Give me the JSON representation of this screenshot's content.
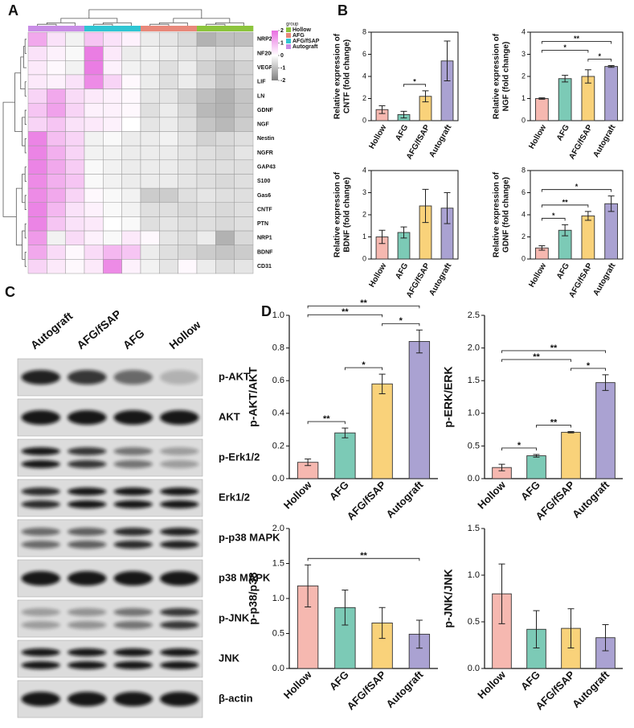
{
  "panels": [
    "A",
    "B",
    "C",
    "D"
  ],
  "chart_data": [
    {
      "type": "heatmap",
      "rows": [
        "NRP2",
        "NF200",
        "VEGF",
        "LIF",
        "LN",
        "GDNF",
        "NGF",
        "Nestin",
        "NGFR",
        "GAP43",
        "S100",
        "Gas6",
        "CNTF",
        "PTN",
        "NRP1",
        "BDNF",
        "CD31"
      ],
      "column_groups": [
        "Autograft",
        "Autograft",
        "Autograft",
        "AFG/fSAP",
        "AFG/fSAP",
        "AFG/fSAP",
        "AFG",
        "AFG",
        "AFG",
        "Hollow",
        "Hollow",
        "Hollow"
      ],
      "legend_title": "group",
      "groups": [
        {
          "name": "Hollow",
          "color": "#8cc43c"
        },
        {
          "name": "AFG",
          "color": "#e8887a"
        },
        {
          "name": "AFG/fSAP",
          "color": "#2ec5d3"
        },
        {
          "name": "Autograft",
          "color": "#c98de6"
        }
      ],
      "zlim": [
        -2,
        2
      ],
      "zticks": [
        2,
        1,
        0,
        -1,
        -2
      ],
      "zcolors": [
        "#7f7f7f",
        "#ffffff",
        "#e86ee0"
      ],
      "values": [
        [
          1.2,
          0.4,
          -0.2,
          0.8,
          0.4,
          0.2,
          -0.3,
          -0.4,
          -0.6,
          -1.2,
          -1.0,
          -1.0
        ],
        [
          0.4,
          0.2,
          -0.1,
          1.8,
          0.3,
          -0.3,
          -0.2,
          -0.3,
          -0.4,
          -0.5,
          -0.6,
          -0.5
        ],
        [
          0.3,
          0.1,
          -0.2,
          1.8,
          0.2,
          -0.2,
          -0.3,
          -0.5,
          -0.3,
          -0.7,
          -0.9,
          -0.7
        ],
        [
          0.3,
          0.2,
          0.4,
          1.6,
          0.6,
          0.1,
          -0.3,
          -0.5,
          -0.3,
          -0.6,
          -0.9,
          -0.7
        ],
        [
          0.6,
          1.2,
          0.5,
          0.3,
          0.2,
          0.1,
          -0.4,
          -0.4,
          -0.7,
          -1.0,
          -1.2,
          -0.9
        ],
        [
          0.8,
          1.3,
          0.6,
          0.2,
          0.2,
          0.1,
          -0.5,
          -0.3,
          -0.6,
          -1.1,
          -1.2,
          -0.9
        ],
        [
          0.6,
          0.8,
          0.4,
          0.3,
          0.2,
          0.0,
          -0.4,
          -0.3,
          -0.5,
          -0.9,
          -1.1,
          -0.8
        ],
        [
          1.7,
          0.9,
          0.6,
          -0.2,
          -0.1,
          -0.3,
          -0.3,
          -0.2,
          -0.4,
          -0.7,
          -0.6,
          -0.5
        ],
        [
          1.7,
          1.1,
          0.6,
          -0.2,
          -0.2,
          -0.3,
          -0.3,
          -0.3,
          -0.4,
          -0.5,
          -0.6,
          -0.4
        ],
        [
          1.7,
          1.2,
          0.7,
          -0.1,
          -0.2,
          -0.3,
          -0.3,
          -0.3,
          -0.4,
          -0.5,
          -0.5,
          -0.5
        ],
        [
          1.6,
          1.1,
          0.8,
          -0.1,
          -0.2,
          -0.3,
          -0.3,
          -0.3,
          -0.4,
          -0.5,
          -0.6,
          -0.5
        ],
        [
          1.6,
          1.2,
          0.6,
          0.1,
          -0.1,
          -0.2,
          -0.8,
          -0.8,
          -0.5,
          -0.4,
          -0.5,
          -0.5
        ],
        [
          1.7,
          1.0,
          0.4,
          0.2,
          -0.1,
          -0.2,
          -0.5,
          -0.5,
          -0.6,
          -0.5,
          -0.6,
          -0.5
        ],
        [
          1.7,
          0.8,
          0.4,
          0.3,
          0.0,
          -0.1,
          -0.5,
          -0.4,
          -0.5,
          -0.5,
          -0.6,
          -0.5
        ],
        [
          1.4,
          -0.2,
          0.5,
          0.2,
          -0.1,
          0.3,
          0.1,
          -0.4,
          -0.5,
          -0.3,
          -1.2,
          -0.6
        ],
        [
          1.2,
          0.5,
          0.1,
          0.5,
          1.0,
          0.8,
          -0.3,
          -0.5,
          -0.6,
          -0.8,
          -0.9,
          -0.8
        ],
        [
          0.6,
          0.3,
          0.1,
          0.3,
          1.6,
          0.2,
          -0.2,
          -0.4,
          0.1,
          -0.3,
          -0.5,
          -0.4
        ]
      ]
    },
    {
      "type": "bar",
      "ylabel": [
        "Relative expression of",
        "CNTF (fold change)"
      ],
      "categories": [
        "Hollow",
        "AFG",
        "AFG/fSAP",
        "Autograft"
      ],
      "colors": [
        "#f6b8b0",
        "#7ccab6",
        "#f9d27a",
        "#aaa2d2"
      ],
      "values": [
        1.0,
        0.55,
        2.2,
        5.4
      ],
      "errors": [
        0.35,
        0.3,
        0.5,
        1.8
      ],
      "ylim": [
        0,
        8
      ],
      "yticks": [
        0,
        2,
        4,
        6,
        8
      ],
      "significance": [
        {
          "pair": [
            "AFG",
            "AFG/fSAP"
          ],
          "label": "*"
        }
      ]
    },
    {
      "type": "bar",
      "ylabel": [
        "Relative expression of",
        "NGF (fold change)"
      ],
      "categories": [
        "Hollow",
        "AFG",
        "AFG/fSAP",
        "Autograft"
      ],
      "colors": [
        "#f6b8b0",
        "#7ccab6",
        "#f9d27a",
        "#aaa2d2"
      ],
      "values": [
        1.0,
        1.9,
        2.0,
        2.45
      ],
      "errors": [
        0.03,
        0.15,
        0.3,
        0.04
      ],
      "ylim": [
        0,
        4
      ],
      "yticks": [
        0,
        1,
        2,
        3,
        4
      ],
      "significance": [
        {
          "pair": [
            "AFG/fSAP",
            "Autograft"
          ],
          "label": "*"
        },
        {
          "pair": [
            "Hollow",
            "AFG/fSAP"
          ],
          "label": "*"
        },
        {
          "pair": [
            "Hollow",
            "Autograft"
          ],
          "label": "**"
        }
      ]
    },
    {
      "type": "bar",
      "ylabel": [
        "Relative expression of",
        "BDNF (fold change)"
      ],
      "categories": [
        "Hollow",
        "AFG",
        "AFG/fSAP",
        "Autograft"
      ],
      "colors": [
        "#f6b8b0",
        "#7ccab6",
        "#f9d27a",
        "#aaa2d2"
      ],
      "values": [
        1.0,
        1.2,
        2.4,
        2.3
      ],
      "errors": [
        0.3,
        0.25,
        0.75,
        0.7
      ],
      "ylim": [
        0,
        4
      ],
      "yticks": [
        0,
        1,
        2,
        3,
        4
      ],
      "significance": []
    },
    {
      "type": "bar",
      "ylabel": [
        "Relative expression of",
        "GDNF (fold change)"
      ],
      "categories": [
        "Hollow",
        "AFG",
        "AFG/fSAP",
        "Autograft"
      ],
      "colors": [
        "#f6b8b0",
        "#7ccab6",
        "#f9d27a",
        "#aaa2d2"
      ],
      "values": [
        1.0,
        2.6,
        3.9,
        5.0
      ],
      "errors": [
        0.2,
        0.5,
        0.4,
        0.7
      ],
      "ylim": [
        0,
        8
      ],
      "yticks": [
        0,
        2,
        4,
        6,
        8
      ],
      "significance": [
        {
          "pair": [
            "Hollow",
            "AFG"
          ],
          "label": "*"
        },
        {
          "pair": [
            "Hollow",
            "AFG/fSAP"
          ],
          "label": "**"
        },
        {
          "pair": [
            "Hollow",
            "Autograft"
          ],
          "label": "*"
        }
      ]
    },
    {
      "type": "bar",
      "ylabel": [
        "p-AKT/AKT"
      ],
      "categories": [
        "Hollow",
        "AFG",
        "AFG/fSAP",
        "Autograft"
      ],
      "colors": [
        "#f6b8b0",
        "#7ccab6",
        "#f9d27a",
        "#aaa2d2"
      ],
      "values": [
        0.1,
        0.28,
        0.58,
        0.84
      ],
      "errors": [
        0.02,
        0.03,
        0.06,
        0.07
      ],
      "ylim": [
        0,
        1
      ],
      "yticks": [
        {
          "value": 0,
          "label": "0.0"
        },
        0.2,
        0.4,
        0.6,
        0.8,
        {
          "value": 1,
          "label": "1.0"
        }
      ],
      "significance": [
        {
          "pair": [
            "Hollow",
            "AFG"
          ],
          "label": "**"
        },
        {
          "pair": [
            "AFG",
            "AFG/fSAP"
          ],
          "label": "*"
        },
        {
          "pair": [
            "AFG/fSAP",
            "Autograft"
          ],
          "label": "*"
        },
        {
          "pair": [
            "Hollow",
            "AFG/fSAP"
          ],
          "label": "**"
        },
        {
          "pair": [
            "Hollow",
            "Autograft"
          ],
          "label": "**"
        }
      ]
    },
    {
      "type": "bar",
      "ylabel": [
        "p-ERK/ERK"
      ],
      "categories": [
        "Hollow",
        "AFG",
        "AFG/fSAP",
        "Autograft"
      ],
      "colors": [
        "#f6b8b0",
        "#7ccab6",
        "#f9d27a",
        "#aaa2d2"
      ],
      "values": [
        0.17,
        0.35,
        0.71,
        1.47
      ],
      "errors": [
        0.05,
        0.02,
        0.01,
        0.12
      ],
      "ylim": [
        0,
        2.5
      ],
      "yticks": [
        {
          "value": 0,
          "label": "0.0"
        },
        0.5,
        {
          "value": 1,
          "label": "1.0"
        },
        1.5,
        {
          "value": 2,
          "label": "2.0"
        },
        2.5
      ],
      "significance": [
        {
          "pair": [
            "Hollow",
            "AFG"
          ],
          "label": "*"
        },
        {
          "pair": [
            "AFG",
            "AFG/fSAP"
          ],
          "label": "**"
        },
        {
          "pair": [
            "AFG/fSAP",
            "Autograft"
          ],
          "label": "*"
        },
        {
          "pair": [
            "Hollow",
            "AFG/fSAP"
          ],
          "label": "**"
        },
        {
          "pair": [
            "Hollow",
            "Autograft"
          ],
          "label": "**"
        }
      ]
    },
    {
      "type": "bar",
      "ylabel": [
        "p-p38/p38"
      ],
      "categories": [
        "Hollow",
        "AFG",
        "AFG/fSAP",
        "Autograft"
      ],
      "colors": [
        "#f6b8b0",
        "#7ccab6",
        "#f9d27a",
        "#aaa2d2"
      ],
      "values": [
        1.18,
        0.87,
        0.65,
        0.49
      ],
      "errors": [
        0.3,
        0.25,
        0.22,
        0.2
      ],
      "ylim": [
        0,
        2
      ],
      "yticks": [
        {
          "value": 0,
          "label": "0.0"
        },
        0.5,
        {
          "value": 1,
          "label": "1.0"
        },
        1.5,
        {
          "value": 2,
          "label": "2.0"
        }
      ],
      "significance": [
        {
          "pair": [
            "Hollow",
            "Autograft"
          ],
          "label": "**"
        }
      ]
    },
    {
      "type": "bar",
      "ylabel": [
        "p-JNK/JNK"
      ],
      "categories": [
        "Hollow",
        "AFG",
        "AFG/fSAP",
        "Autograft"
      ],
      "colors": [
        "#f6b8b0",
        "#7ccab6",
        "#f9d27a",
        "#aaa2d2"
      ],
      "values": [
        0.8,
        0.42,
        0.43,
        0.33
      ],
      "errors": [
        0.32,
        0.2,
        0.21,
        0.14
      ],
      "ylim": [
        0,
        1.5
      ],
      "yticks": [
        {
          "value": 0,
          "label": "0.0"
        },
        0.5,
        {
          "value": 1,
          "label": "1.0"
        },
        1.5
      ],
      "significance": []
    }
  ],
  "blot": {
    "lanes": [
      "Autograft",
      "AFG/fSAP",
      "AFG",
      "Hollow"
    ],
    "bands": [
      "p-AKT",
      "AKT",
      "p-Erk1/2",
      "Erk1/2",
      "p-p38 MAPK",
      "p38 MAPK",
      "p-JNK",
      "JNK",
      "β-actin"
    ]
  }
}
